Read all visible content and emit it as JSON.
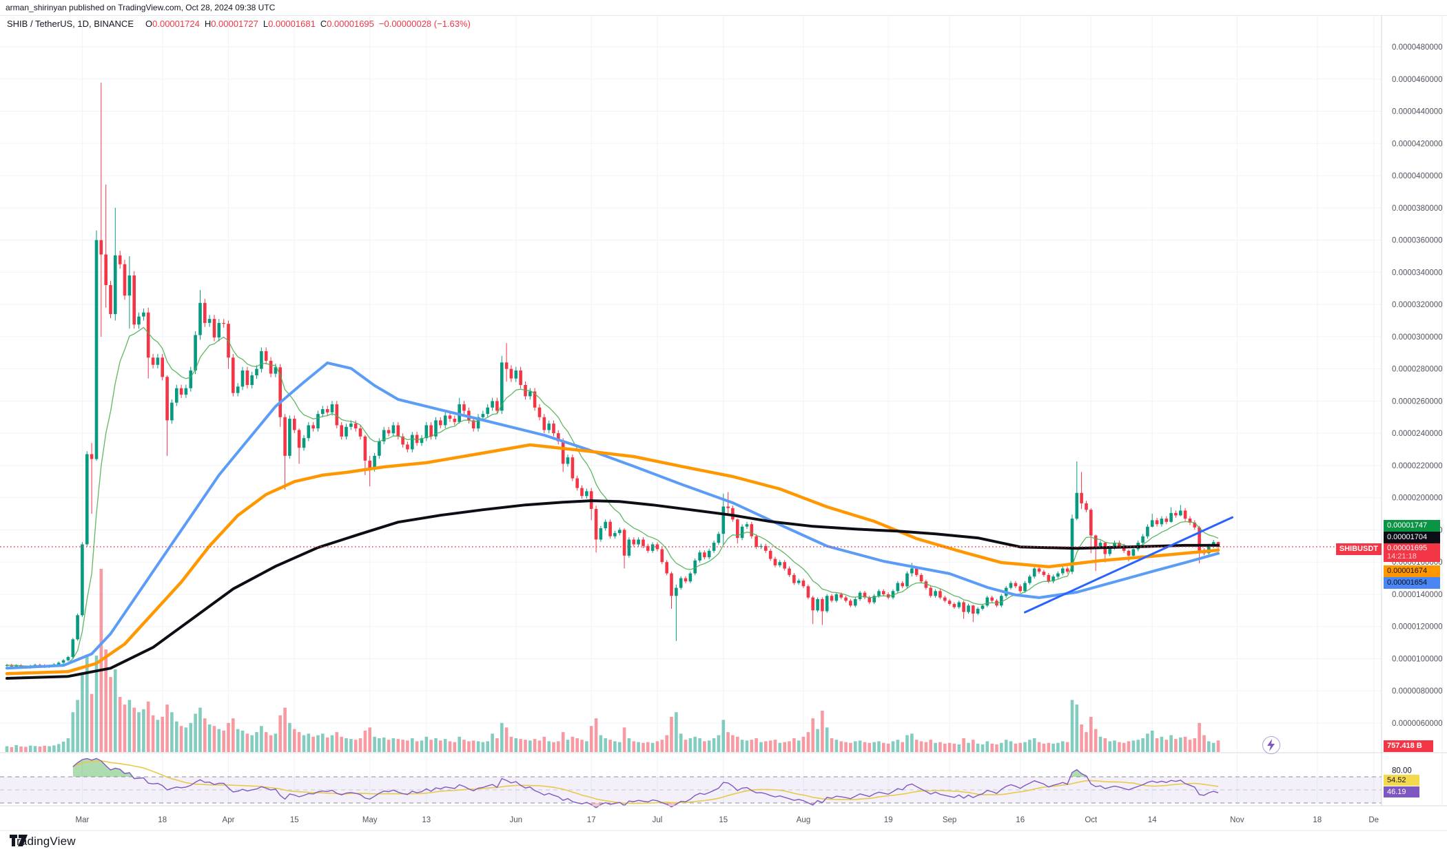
{
  "attribution": "arman_shirinyan published on TradingView.com, Oct 28, 2024 09:38 UTC",
  "legend": {
    "symbol": "SHIB / TetherUS, 1D, BINANCE",
    "o_label": "O",
    "o": "0.00001724",
    "h_label": "H",
    "h": "0.00001727",
    "l_label": "L",
    "l": "0.00001681",
    "c_label": "C",
    "c": "0.00001695",
    "change": "−0.00000028 (−1.63%)"
  },
  "price_labels": {
    "ma_green": "0.00001747",
    "ma_black": "0.00001704",
    "last_price": "0.00001695",
    "countdown": "14:21:18",
    "symbol_tag": "SHIBUSDT",
    "ma_orange": "0.00001674",
    "ma_blue": "0.00001654",
    "volume": "757.418 B"
  },
  "rsi_labels": {
    "tick_80": "80.00",
    "ma_value": "54.52",
    "rsi_value": "46.19"
  },
  "footer": {
    "logo_text": "TradingView"
  },
  "colors": {
    "candle_up": "#089981",
    "candle_down": "#f23645",
    "vol_up": "rgba(8,153,129,0.5)",
    "vol_down": "rgba(242,54,69,0.5)",
    "ema_green": "#4caf50",
    "ma_blue": "#5b9cf6",
    "ma_orange": "#ff9800",
    "ma_black": "#0c0e15",
    "trend_blue": "#2962ff",
    "rsi_purple": "#7e57c2",
    "rsi_yellow": "#e8c94a",
    "grid": "#f0f3fa",
    "axis_text": "#50535e",
    "price_line": "#f23645"
  },
  "chart_data": {
    "type": "candlestick",
    "title": "SHIB / TetherUS, 1D, BINANCE",
    "price_unit": "1e-8 USDT",
    "first_day": "Feb 14 2024",
    "open_first": 955,
    "default_wick_pct": 0.008,
    "closes": [
      960,
      952,
      958,
      950,
      945,
      955,
      962,
      958,
      950,
      955,
      965,
      975,
      990,
      1010,
      1120,
      1270,
      1710,
      2270,
      2240,
      3600,
      3510,
      3320,
      3140,
      3505,
      3450,
      3255,
      3380,
      3075,
      3125,
      3150,
      2870,
      2825,
      2870,
      2750,
      2480,
      2590,
      2680,
      2640,
      2680,
      2790,
      3010,
      3210,
      3085,
      3110,
      2995,
      3085,
      3080,
      2870,
      2650,
      2690,
      2790,
      2700,
      2760,
      2800,
      2910,
      2850,
      2770,
      2810,
      2500,
      2260,
      2490,
      2420,
      2310,
      2370,
      2450,
      2430,
      2520,
      2550,
      2530,
      2580,
      2450,
      2380,
      2440,
      2460,
      2430,
      2380,
      2230,
      2180,
      2260,
      2350,
      2420,
      2400,
      2450,
      2380,
      2330,
      2300,
      2390,
      2340,
      2370,
      2450,
      2380,
      2480,
      2450,
      2510,
      2490,
      2470,
      2580,
      2540,
      2480,
      2430,
      2500,
      2520,
      2560,
      2600,
      2540,
      2840,
      2800,
      2740,
      2790,
      2700,
      2630,
      2660,
      2560,
      2500,
      2420,
      2460,
      2400,
      2350,
      2210,
      2250,
      2120,
      2060,
      2010,
      2040,
      1930,
      1740,
      1810,
      1850,
      1760,
      1780,
      1800,
      1640,
      1740,
      1710,
      1740,
      1700,
      1670,
      1710,
      1680,
      1600,
      1530,
      1390,
      1440,
      1500,
      1480,
      1530,
      1610,
      1660,
      1630,
      1670,
      1720,
      1775,
      1945,
      1935,
      1865,
      1750,
      1820,
      1835,
      1760,
      1695,
      1700,
      1670,
      1620,
      1580,
      1600,
      1560,
      1520,
      1470,
      1485,
      1450,
      1380,
      1300,
      1370,
      1295,
      1390,
      1360,
      1400,
      1380,
      1360,
      1330,
      1370,
      1410,
      1380,
      1350,
      1390,
      1420,
      1400,
      1380,
      1420,
      1470,
      1450,
      1530,
      1560,
      1520,
      1480,
      1440,
      1390,
      1420,
      1380,
      1360,
      1340,
      1320,
      1350,
      1290,
      1330,
      1280,
      1310,
      1330,
      1380,
      1360,
      1330,
      1390,
      1440,
      1470,
      1450,
      1420,
      1470,
      1510,
      1560,
      1540,
      1520,
      1480,
      1510,
      1530,
      1560,
      1540,
      1870,
      2030,
      1965,
      1925,
      1765,
      1695,
      1720,
      1650,
      1690,
      1720,
      1700,
      1670,
      1640,
      1680,
      1720,
      1760,
      1820,
      1860,
      1835,
      1870,
      1850,
      1905,
      1890,
      1920,
      1870,
      1845,
      1815,
      1672,
      1655,
      1700,
      1724,
      1695
    ],
    "wick_overrides": {
      "18": [
        2340,
        1900
      ],
      "19": [
        3660,
        2230
      ],
      "20": [
        4577,
        3000
      ],
      "21": [
        3945,
        3180
      ],
      "23": [
        3800,
        3100
      ],
      "26": [
        3500,
        3050
      ],
      "30": [
        3180,
        2740
      ],
      "34": [
        2760,
        2260
      ],
      "41": [
        3290,
        2980
      ],
      "47": [
        3100,
        2800
      ],
      "58": [
        2830,
        2440
      ],
      "59": [
        2520,
        2050
      ],
      "62": [
        2430,
        2210
      ],
      "76": [
        2390,
        2140
      ],
      "77": [
        2260,
        2070
      ],
      "96": [
        2620,
        2460
      ],
      "105": [
        2880,
        2520
      ],
      "106": [
        2960,
        2720
      ],
      "118": [
        2370,
        2160
      ],
      "124": [
        2060,
        1860
      ],
      "125": [
        1950,
        1660
      ],
      "131": [
        1810,
        1560
      ],
      "141": [
        1540,
        1310
      ],
      "142": [
        1460,
        1110
      ],
      "152": [
        2025,
        1705
      ],
      "153": [
        2035,
        1900
      ],
      "155": [
        1870,
        1715
      ],
      "171": [
        1390,
        1215
      ],
      "173": [
        1380,
        1210
      ],
      "192": [
        1595,
        1510
      ],
      "203": [
        1360,
        1248
      ],
      "205": [
        1335,
        1228
      ],
      "226": [
        1895,
        1525
      ],
      "227": [
        2225,
        1860
      ],
      "228": [
        2160,
        1930
      ],
      "230": [
        1935,
        1655
      ],
      "231": [
        1770,
        1545
      ],
      "233": [
        1725,
        1598
      ],
      "238": [
        1678,
        1604
      ],
      "243": [
        1900,
        1815
      ],
      "247": [
        1940,
        1845
      ],
      "249": [
        1955,
        1885
      ],
      "253": [
        1825,
        1592
      ],
      "257": [
        1727,
        1681
      ]
    },
    "volumes": [
      380,
      320,
      450,
      360,
      340,
      420,
      390,
      360,
      410,
      380,
      430,
      520,
      680,
      900,
      2600,
      3400,
      5200,
      6300,
      3800,
      6300,
      11970,
      6700,
      4900,
      5400,
      3600,
      3100,
      3400,
      2900,
      2600,
      2800,
      3300,
      2400,
      2100,
      2300,
      3100,
      2600,
      2000,
      1700,
      1600,
      1900,
      2500,
      2900,
      2200,
      1800,
      1700,
      1500,
      1400,
      1900,
      2200,
      1500,
      1400,
      1200,
      1100,
      1300,
      1700,
      1300,
      1100,
      1200,
      2400,
      2900,
      1900,
      1500,
      1300,
      1100,
      1200,
      1000,
      1100,
      1200,
      950,
      1100,
      1300,
      1000,
      900,
      850,
      800,
      900,
      1400,
      1600,
      1000,
      900,
      950,
      800,
      900,
      850,
      800,
      750,
      900,
      700,
      750,
      1000,
      800,
      900,
      750,
      850,
      700,
      650,
      1000,
      800,
      700,
      750,
      700,
      650,
      700,
      1200,
      900,
      1900,
      1600,
      1000,
      900,
      850,
      800,
      750,
      850,
      750,
      1000,
      700,
      650,
      700,
      1300,
      800,
      1000,
      900,
      800,
      700,
      1700,
      2200,
      1100,
      900,
      800,
      700,
      650,
      1600,
      900,
      700,
      650,
      600,
      650,
      600,
      700,
      800,
      1100,
      2300,
      2600,
      1200,
      800,
      900,
      1000,
      900,
      700,
      750,
      900,
      1100,
      2100,
      1300,
      1100,
      1000,
      800,
      750,
      800,
      900,
      650,
      700,
      750,
      800,
      600,
      650,
      700,
      900,
      750,
      1000,
      1300,
      2200,
      1500,
      2700,
      1600,
      900,
      800,
      700,
      650,
      600,
      700,
      750,
      650,
      600,
      650,
      700,
      600,
      550,
      700,
      800,
      650,
      1100,
      1200,
      800,
      700,
      650,
      800,
      600,
      650,
      550,
      600,
      550,
      500,
      900,
      600,
      800,
      550,
      500,
      700,
      550,
      500,
      600,
      800,
      700,
      550,
      600,
      650,
      800,
      900,
      650,
      550,
      600,
      550,
      600,
      700,
      650,
      3400,
      3100,
      1800,
      1300,
      2300,
      1500,
      1000,
      900,
      700,
      750,
      650,
      600,
      700,
      750,
      800,
      900,
      1200,
      1400,
      900,
      1000,
      800,
      1100,
      850,
      950,
      1000,
      800,
      900,
      1900,
      1100,
      700,
      600,
      757.418
    ],
    "overlays": {
      "ema_green_period": 10,
      "ma_blue": [
        [
          0,
          941
        ],
        [
          12,
          958
        ],
        [
          18,
          1030
        ],
        [
          22,
          1155
        ],
        [
          28,
          1412
        ],
        [
          34,
          1670
        ],
        [
          40,
          1926
        ],
        [
          45,
          2140
        ],
        [
          51,
          2354
        ],
        [
          57,
          2567
        ],
        [
          63,
          2717
        ],
        [
          68,
          2837
        ],
        [
          73,
          2803
        ],
        [
          78,
          2696
        ],
        [
          83,
          2610
        ],
        [
          89,
          2567
        ],
        [
          101,
          2482
        ],
        [
          114,
          2388
        ],
        [
          123,
          2302
        ],
        [
          133,
          2195
        ],
        [
          143,
          2084
        ],
        [
          154,
          1968
        ],
        [
          164,
          1832
        ],
        [
          174,
          1699
        ],
        [
          186,
          1605
        ],
        [
          200,
          1528
        ],
        [
          208,
          1443
        ],
        [
          214,
          1396
        ],
        [
          219,
          1379
        ],
        [
          227,
          1413
        ],
        [
          234,
          1469
        ],
        [
          244,
          1550
        ],
        [
          250,
          1597
        ],
        [
          257,
          1654
        ]
      ],
      "ma_orange": [
        [
          0,
          907
        ],
        [
          13,
          920
        ],
        [
          19,
          971
        ],
        [
          25,
          1091
        ],
        [
          31,
          1284
        ],
        [
          37,
          1476
        ],
        [
          43,
          1700
        ],
        [
          49,
          1890
        ],
        [
          55,
          2020
        ],
        [
          61,
          2100
        ],
        [
          67,
          2140
        ],
        [
          72,
          2157
        ],
        [
          80,
          2191
        ],
        [
          89,
          2217
        ],
        [
          101,
          2277
        ],
        [
          111,
          2328
        ],
        [
          123,
          2290
        ],
        [
          133,
          2255
        ],
        [
          143,
          2195
        ],
        [
          154,
          2131
        ],
        [
          164,
          2054
        ],
        [
          174,
          1943
        ],
        [
          184,
          1853
        ],
        [
          193,
          1746
        ],
        [
          202,
          1669
        ],
        [
          211,
          1597
        ],
        [
          221,
          1571
        ],
        [
          232,
          1609
        ],
        [
          244,
          1639
        ],
        [
          257,
          1674
        ]
      ],
      "ma_black": [
        [
          0,
          878
        ],
        [
          13,
          890
        ],
        [
          22,
          941
        ],
        [
          31,
          1070
        ],
        [
          40,
          1262
        ],
        [
          48,
          1433
        ],
        [
          57,
          1574
        ],
        [
          66,
          1690
        ],
        [
          75,
          1775
        ],
        [
          83,
          1848
        ],
        [
          92,
          1891
        ],
        [
          101,
          1925
        ],
        [
          110,
          1955
        ],
        [
          118,
          1972
        ],
        [
          124,
          1981
        ],
        [
          130,
          1976
        ],
        [
          137,
          1955
        ],
        [
          145,
          1925
        ],
        [
          154,
          1891
        ],
        [
          162,
          1852
        ],
        [
          171,
          1822
        ],
        [
          180,
          1805
        ],
        [
          189,
          1792
        ],
        [
          197,
          1775
        ],
        [
          206,
          1750
        ],
        [
          215,
          1694
        ],
        [
          227,
          1685
        ],
        [
          238,
          1694
        ],
        [
          250,
          1704
        ],
        [
          257,
          1704
        ]
      ],
      "trendline_blue": [
        [
          216,
          1288
        ],
        [
          260,
          1878
        ]
      ]
    },
    "rsi": {
      "period": 14,
      "ma_period": 14,
      "levels": [
        70,
        50,
        30
      ],
      "last": 46.19,
      "ma_last": 54.52,
      "tick": 80
    },
    "price_line": 1695,
    "y_ticks": [
      4800,
      4600,
      4400,
      4200,
      4000,
      3800,
      3600,
      3400,
      3200,
      3000,
      2800,
      2600,
      2400,
      2200,
      2000,
      1800,
      1600,
      1400,
      1200,
      1000,
      800,
      600
    ],
    "x_ticks": [
      [
        16,
        "Mar"
      ],
      [
        33,
        "18"
      ],
      [
        47,
        "Apr"
      ],
      [
        61,
        "15"
      ],
      [
        77,
        "May"
      ],
      [
        89,
        "13"
      ],
      [
        108,
        "Jun"
      ],
      [
        124,
        "17"
      ],
      [
        138,
        "Jul"
      ],
      [
        152,
        "15"
      ],
      [
        169,
        "Aug"
      ],
      [
        187,
        "19"
      ],
      [
        200,
        "Sep"
      ],
      [
        215,
        "16"
      ],
      [
        230,
        "Oct"
      ],
      [
        243,
        "14"
      ],
      [
        261,
        "Nov"
      ],
      [
        278,
        "18"
      ],
      [
        290,
        "De"
      ]
    ]
  }
}
